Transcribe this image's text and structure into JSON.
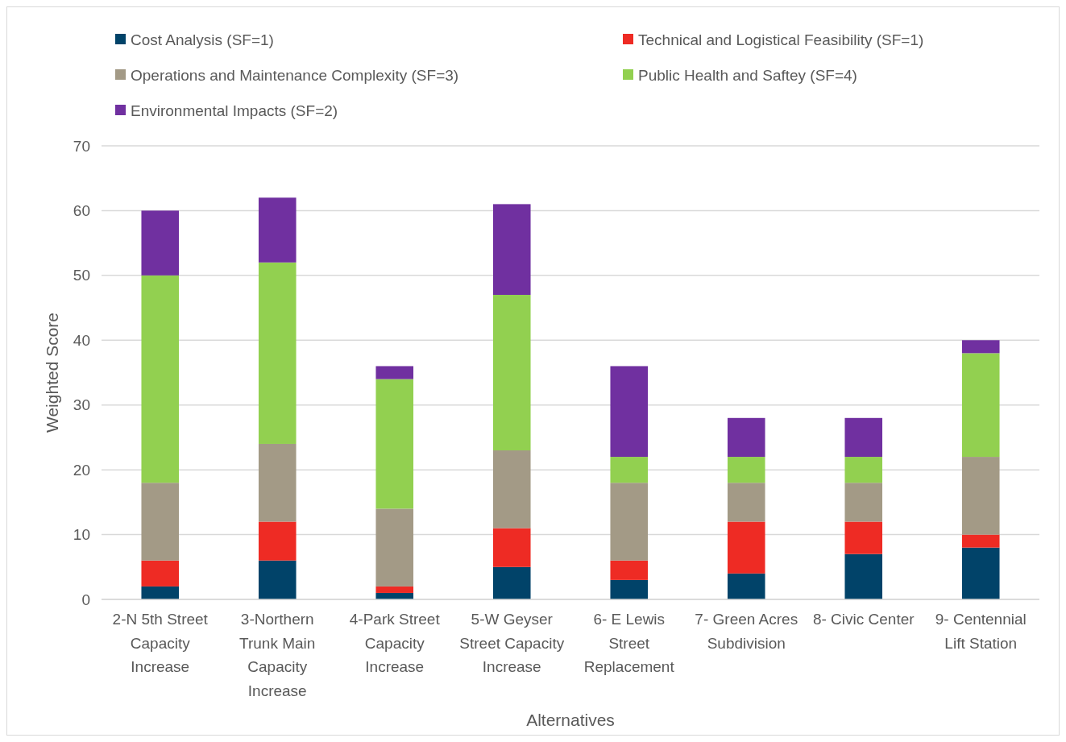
{
  "chart_data": {
    "type": "bar",
    "stacked": true,
    "xlabel": "Alternatives",
    "ylabel": "Weighted Score",
    "categories": [
      "2-N 5th Street Capacity Increase",
      "3-Northern Trunk Main Capacity Increase",
      "4-Park Street Capacity Increase",
      "5-W Geyser Street Capacity Increase",
      "6- E Lewis Street Replacement",
      "7- Green Acres Subdivision",
      "8- Civic Center",
      "9- Centennial Lift Station"
    ],
    "series": [
      {
        "name": "Cost Analysis (SF=1)",
        "color": "#014369",
        "values": [
          2,
          6,
          1,
          5,
          3,
          4,
          7,
          8
        ]
      },
      {
        "name": "Technical and Logistical Feasibility (SF=1)",
        "color": "#ee2b24",
        "values": [
          4,
          6,
          1,
          6,
          3,
          8,
          5,
          2
        ]
      },
      {
        "name": "Operations and Maintenance Complexity (SF=3)",
        "color": "#a39a86",
        "values": [
          12,
          12,
          12,
          12,
          12,
          6,
          6,
          12
        ]
      },
      {
        "name": "Public Health and Saftey (SF=4)",
        "color": "#92d050",
        "values": [
          32,
          28,
          20,
          24,
          4,
          4,
          4,
          16
        ]
      },
      {
        "name": "Environmental Impacts (SF=2)",
        "color": "#7030a0",
        "values": [
          10,
          10,
          2,
          14,
          14,
          6,
          6,
          2
        ]
      }
    ],
    "ylim": [
      0,
      70
    ],
    "yticks": [
      0,
      10,
      20,
      30,
      40,
      50,
      60,
      70
    ],
    "grid": "y",
    "legend": "top"
  }
}
